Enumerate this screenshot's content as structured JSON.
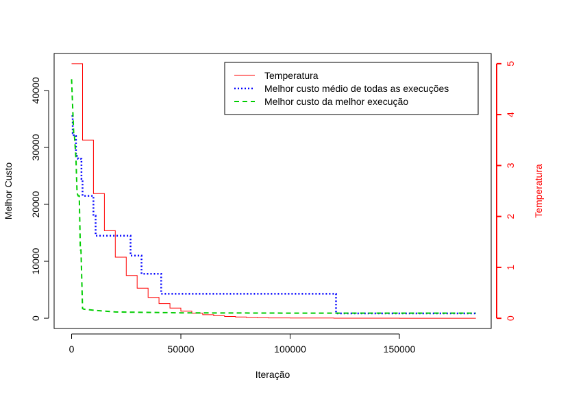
{
  "chart_data": {
    "type": "line",
    "title": "",
    "xlabel": "Iteração",
    "ylabel": "Melhor Custo",
    "y2label": "Temperatura",
    "xlim": [
      -8000,
      192000
    ],
    "ylim": [
      -1800,
      46500
    ],
    "y2lim": [
      -0.2,
      5.2
    ],
    "x_ticks": [
      0,
      50000,
      100000,
      150000
    ],
    "x_tick_labels": [
      "0",
      "50000",
      "100000",
      "150000"
    ],
    "y_ticks": [
      0,
      10000,
      20000,
      30000,
      40000
    ],
    "y_tick_labels": [
      "0",
      "10000",
      "20000",
      "30000",
      "40000"
    ],
    "y2_ticks": [
      0,
      1,
      2,
      3,
      4,
      5
    ],
    "y2_tick_labels": [
      "0",
      "1",
      "2",
      "3",
      "4",
      "5"
    ],
    "grid": false,
    "legend_position": "top-right",
    "series": [
      {
        "name": "Temperatura",
        "axis": "right",
        "color": "#ff0000",
        "style": "solid",
        "step": true,
        "x": [
          0,
          5000,
          10000,
          15000,
          20000,
          25000,
          30000,
          35000,
          40000,
          45000,
          50000,
          55000,
          60000,
          65000,
          70000,
          75000,
          80000,
          85000,
          90000,
          100000,
          120000,
          150000,
          185000
        ],
        "y": [
          5.0,
          3.5,
          2.45,
          1.72,
          1.2,
          0.84,
          0.59,
          0.41,
          0.29,
          0.2,
          0.14,
          0.1,
          0.07,
          0.05,
          0.035,
          0.025,
          0.017,
          0.012,
          0.008,
          0.005,
          0.002,
          0.001,
          0.0
        ]
      },
      {
        "name": "Melhor custo médio de todas as execuções",
        "axis": "left",
        "color": "#0000ff",
        "style": "dotted",
        "step": true,
        "x": [
          0,
          500,
          1000,
          2000,
          3000,
          4500,
          5000,
          10000,
          11000,
          27000,
          32000,
          41000,
          121000,
          185000
        ],
        "y": [
          35500,
          32500,
          32000,
          28500,
          28000,
          24500,
          21500,
          18000,
          14500,
          11000,
          7800,
          4300,
          850,
          850
        ]
      },
      {
        "name": "Melhor custo da melhor execução",
        "axis": "left",
        "color": "#00cc00",
        "style": "dashed",
        "step": false,
        "x": [
          0,
          1000,
          1300,
          2000,
          2500,
          3000,
          3500,
          4000,
          4300,
          5000,
          5500,
          10000,
          20000,
          50000,
          100000,
          185000
        ],
        "y": [
          42000,
          32000,
          32000,
          28000,
          22000,
          21500,
          21500,
          12000,
          12000,
          1700,
          1600,
          1400,
          1100,
          950,
          900,
          900
        ]
      }
    ]
  }
}
